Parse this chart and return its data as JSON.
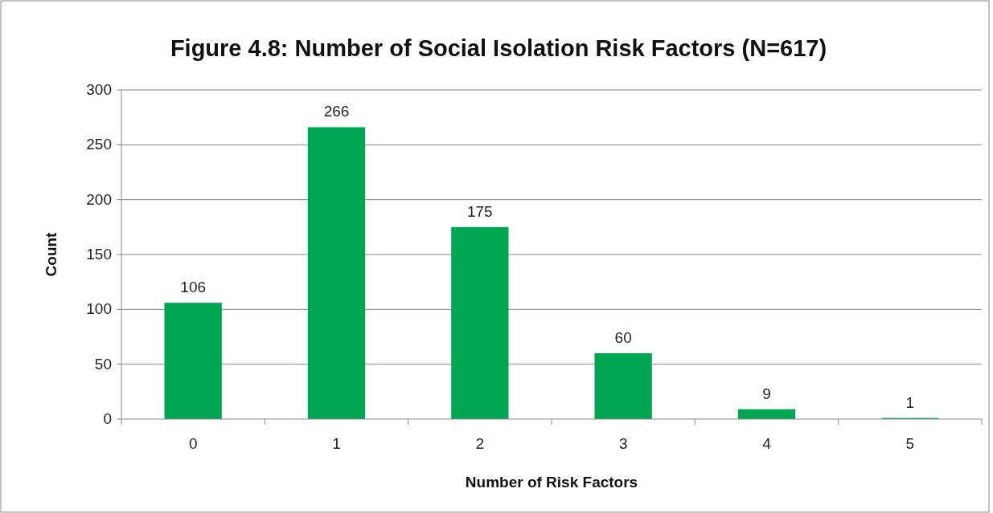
{
  "chart_data": {
    "type": "bar",
    "title": "Figure 4.8: Number of Social Isolation Risk Factors (N=617)",
    "xlabel": "Number of Risk Factors",
    "ylabel": "Count",
    "categories": [
      "0",
      "1",
      "2",
      "3",
      "4",
      "5"
    ],
    "values": [
      106,
      266,
      175,
      60,
      9,
      1
    ],
    "color": "#00a651",
    "ylim": [
      0,
      300
    ],
    "yticks": [
      0,
      50,
      100,
      150,
      200,
      250,
      300
    ],
    "grid": "y",
    "data_labels": true
  }
}
